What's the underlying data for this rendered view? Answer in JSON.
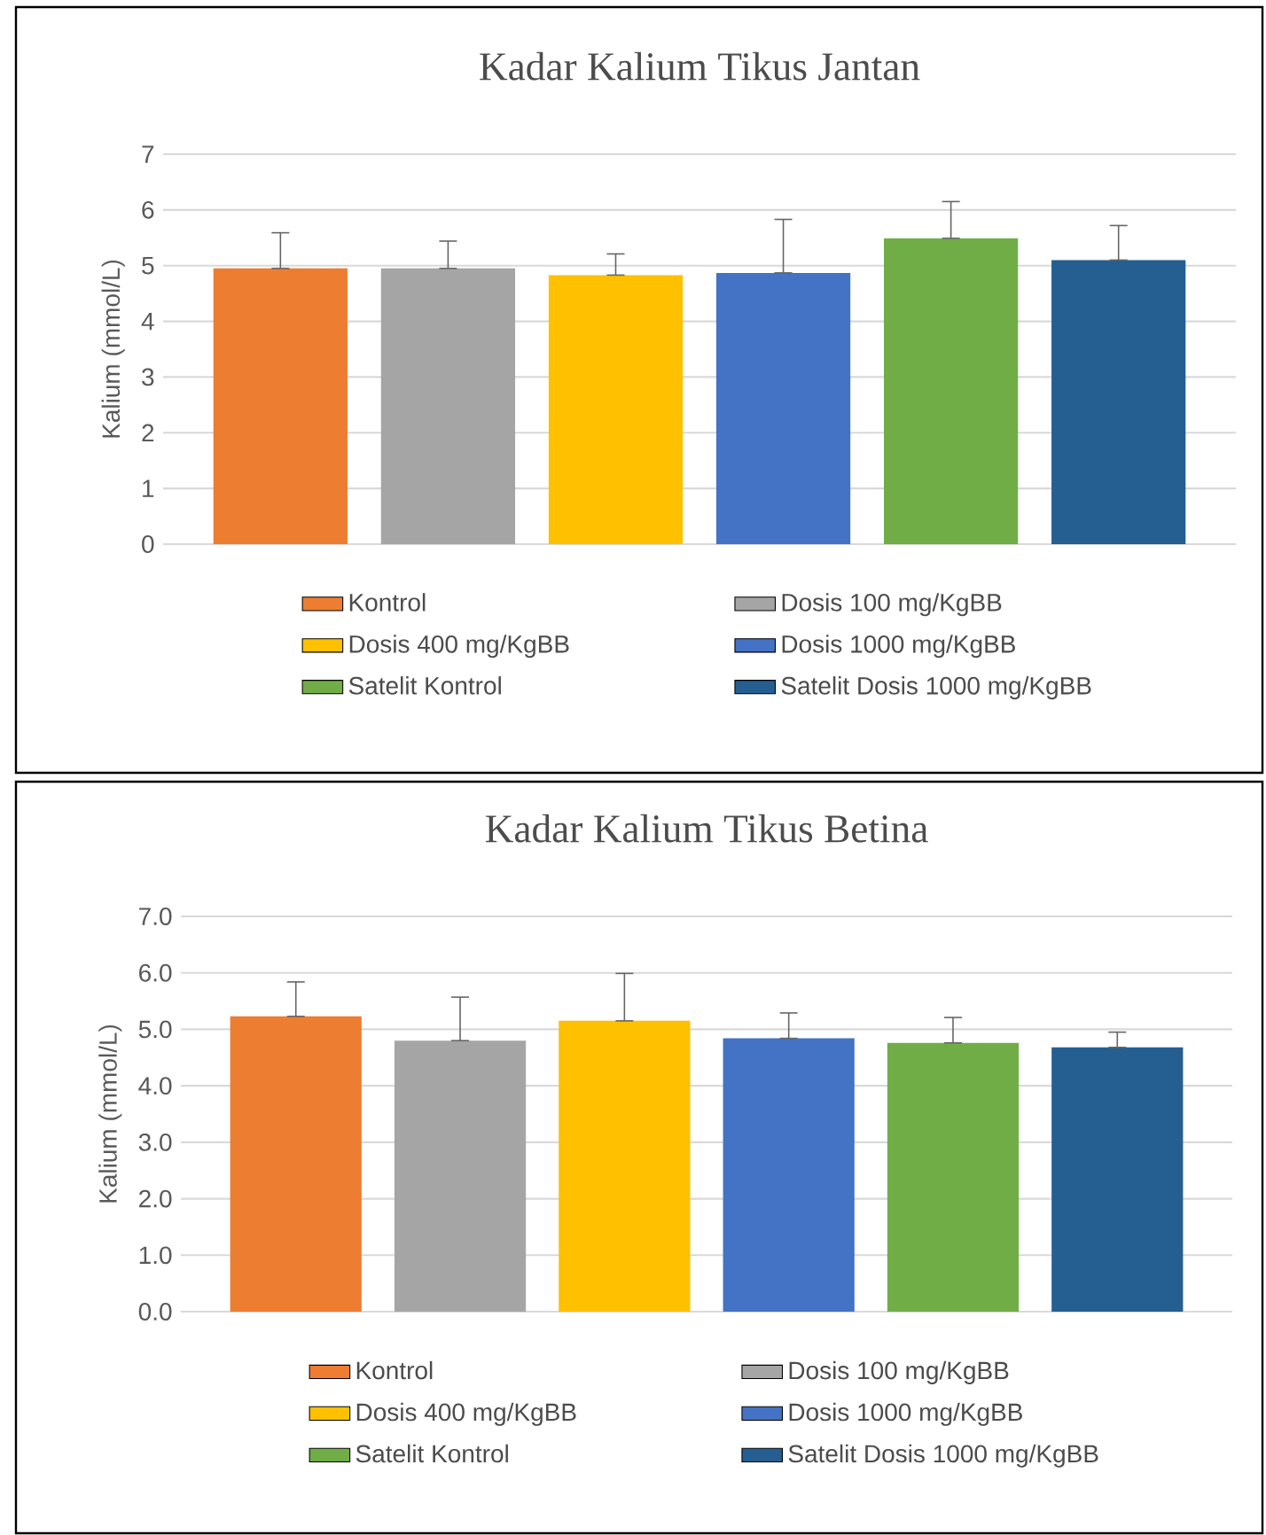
{
  "chart_data": [
    {
      "type": "bar",
      "title": "Kadar Kalium Tikus Jantan",
      "ylabel": "Kalium (mmol/L)",
      "categories": [
        null
      ],
      "ylim": [
        0,
        7
      ],
      "yticks": [
        0,
        1,
        2,
        3,
        4,
        5,
        6,
        7
      ],
      "grid": "y",
      "legend": "bottom",
      "series": [
        {
          "name": "Kontrol",
          "color": "#ed7d31",
          "values": [
            4.95
          ],
          "errors": [
            [
              4.95,
              5.59
            ]
          ]
        },
        {
          "name": "Dosis 100 mg/KgBB",
          "color": "#a5a5a5",
          "values": [
            4.95
          ],
          "errors": [
            [
              4.95,
              5.44
            ]
          ]
        },
        {
          "name": "Dosis 400 mg/KgBB",
          "color": "#ffc000",
          "values": [
            4.83
          ],
          "errors": [
            [
              4.83,
              5.21
            ]
          ]
        },
        {
          "name": "Dosis 1000 mg/KgBB",
          "color": "#4472c4",
          "values": [
            4.87
          ],
          "errors": [
            [
              4.87,
              5.83
            ]
          ]
        },
        {
          "name": "Satelit Kontrol",
          "color": "#70ad47",
          "values": [
            5.49
          ],
          "errors": [
            [
              5.49,
              6.15
            ]
          ]
        },
        {
          "name": "Satelit Dosis 1000 mg/KgBB",
          "color": "#255e91",
          "values": [
            5.1
          ],
          "errors": [
            [
              5.1,
              5.72
            ]
          ]
        }
      ]
    },
    {
      "type": "bar",
      "title": "Kadar Kalium Tikus Betina",
      "ylabel": "Kalium (mmol/L)",
      "categories": [
        null
      ],
      "ylim": [
        0,
        7
      ],
      "yticks": [
        {
          "value": 0,
          "label": "0.0"
        },
        {
          "value": 1,
          "label": "1.0"
        },
        {
          "value": 2,
          "label": "2.0"
        },
        {
          "value": 3,
          "label": "3.0"
        },
        {
          "value": 4,
          "label": "4.0"
        },
        {
          "value": 5,
          "label": "5.0"
        },
        {
          "value": 6,
          "label": "6.0"
        },
        {
          "value": 7,
          "label": "7.0"
        }
      ],
      "grid": "y",
      "legend": "bottom",
      "series": [
        {
          "name": "Kontrol",
          "color": "#ed7d31",
          "values": [
            5.23
          ],
          "errors": [
            [
              5.23,
              5.84
            ]
          ]
        },
        {
          "name": "Dosis 100 mg/KgBB",
          "color": "#a5a5a5",
          "values": [
            4.8
          ],
          "errors": [
            [
              4.8,
              5.57
            ]
          ]
        },
        {
          "name": "Dosis 400 mg/KgBB",
          "color": "#ffc000",
          "values": [
            5.15
          ],
          "errors": [
            [
              5.15,
              5.99
            ]
          ]
        },
        {
          "name": "Dosis 1000 mg/KgBB",
          "color": "#4472c4",
          "values": [
            4.84
          ],
          "errors": [
            [
              4.84,
              5.29
            ]
          ]
        },
        {
          "name": "Satelit Kontrol",
          "color": "#70ad47",
          "values": [
            4.76
          ],
          "errors": [
            [
              4.76,
              5.21
            ]
          ]
        },
        {
          "name": "Satelit Dosis 1000 mg/KgBB",
          "color": "#255e91",
          "values": [
            4.68
          ],
          "errors": [
            [
              4.68,
              4.95
            ]
          ]
        }
      ]
    }
  ]
}
